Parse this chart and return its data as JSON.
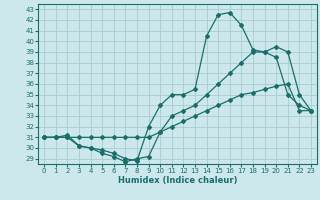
{
  "title": "",
  "xlabel": "Humidex (Indice chaleur)",
  "bg_color": "#cde8ec",
  "grid_color": "#a8ccce",
  "line_color": "#1a6e6a",
  "xlim": [
    -0.5,
    23.5
  ],
  "ylim": [
    28.5,
    43.5
  ],
  "xticks": [
    0,
    1,
    2,
    3,
    4,
    5,
    6,
    7,
    8,
    9,
    10,
    11,
    12,
    13,
    14,
    15,
    16,
    17,
    18,
    19,
    20,
    21,
    22,
    23
  ],
  "yticks": [
    29,
    30,
    31,
    32,
    33,
    34,
    35,
    36,
    37,
    38,
    39,
    40,
    41,
    42,
    43
  ],
  "line1_x": [
    0,
    1,
    2,
    3,
    4,
    5,
    6,
    7,
    8,
    9,
    10,
    11,
    12,
    13,
    14,
    15,
    16,
    17,
    18,
    19,
    20,
    21,
    22,
    23
  ],
  "line1_y": [
    31,
    31,
    31,
    30.2,
    30,
    29.5,
    29.2,
    28.7,
    29,
    29.2,
    31.5,
    33,
    33.5,
    34,
    35,
    36,
    37,
    38,
    39,
    39,
    39.5,
    39,
    35,
    33.5
  ],
  "line2_x": [
    0,
    1,
    2,
    3,
    4,
    5,
    6,
    7,
    8,
    9,
    10,
    11,
    12,
    13,
    14,
    15,
    16,
    17,
    18,
    19,
    20,
    21,
    22,
    23
  ],
  "line2_y": [
    31,
    31,
    31.2,
    30.2,
    30,
    29.8,
    29.5,
    29,
    28.8,
    32,
    34,
    35,
    35,
    35.5,
    40.5,
    42.5,
    42.7,
    41.5,
    39.2,
    39,
    38.5,
    35,
    34,
    33.5
  ],
  "line3_x": [
    0,
    1,
    2,
    3,
    4,
    5,
    6,
    7,
    8,
    9,
    10,
    11,
    12,
    13,
    14,
    15,
    16,
    17,
    18,
    19,
    20,
    21,
    22,
    23
  ],
  "line3_y": [
    31,
    31,
    31,
    31,
    31,
    31,
    31,
    31,
    31,
    31,
    31.5,
    32,
    32.5,
    33,
    33.5,
    34,
    34.5,
    35,
    35.2,
    35.5,
    35.8,
    36,
    33.5,
    33.5
  ]
}
